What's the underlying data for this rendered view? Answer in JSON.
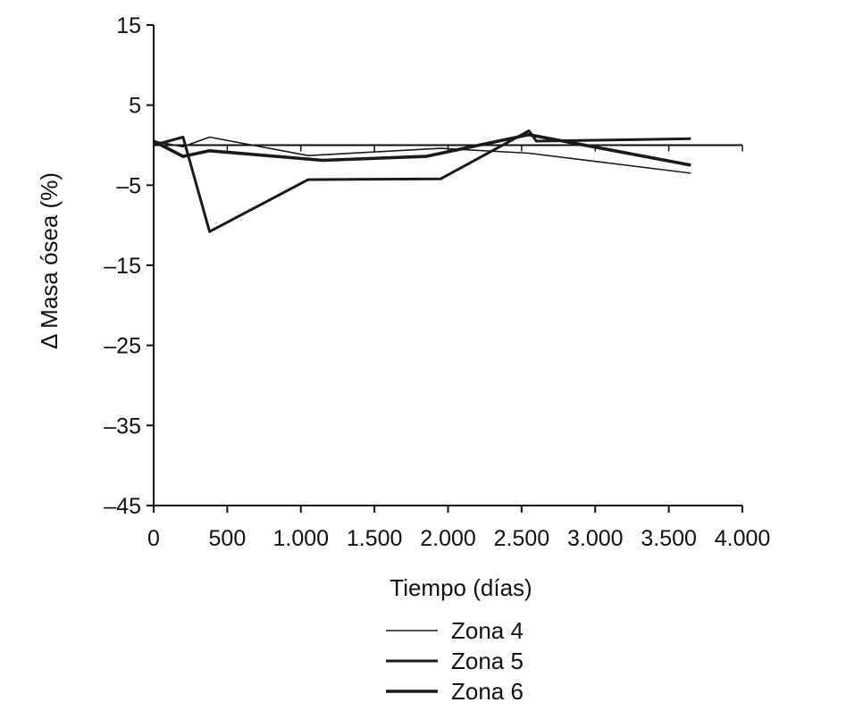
{
  "chart_data": {
    "type": "line",
    "title": "",
    "xlabel": "Tiempo (días)",
    "ylabel": "Δ Masa ósea (%)",
    "xlim": [
      0,
      4000
    ],
    "ylim": [
      -45,
      15
    ],
    "x_ticks": [
      0,
      500,
      1000,
      1500,
      2000,
      2500,
      3000,
      3500,
      4000
    ],
    "x_tick_labels": [
      "0",
      "500",
      "1.000",
      "1.500",
      "2.000",
      "2.500",
      "3.000",
      "3.500",
      "4.000"
    ],
    "y_ticks": [
      15,
      5,
      -5,
      -15,
      -25,
      -35,
      -45
    ],
    "y_tick_labels": [
      "15",
      "5",
      "–5",
      "–15",
      "–25",
      "–35",
      "–45"
    ],
    "grid": false,
    "legend_position": "bottom",
    "series": [
      {
        "name": "Zona 4",
        "color": "#1a1a1a",
        "line_style": "thin",
        "points": [
          [
            0,
            0.5
          ],
          [
            200,
            -0.2
          ],
          [
            380,
            1
          ],
          [
            1050,
            -1.3
          ],
          [
            1950,
            -0.4
          ],
          [
            2550,
            -1
          ],
          [
            3650,
            -3.5
          ]
        ]
      },
      {
        "name": "Zona 5",
        "color": "#1a1a1a",
        "line_style": "medium",
        "points": [
          [
            0,
            0
          ],
          [
            200,
            1
          ],
          [
            380,
            -10.8
          ],
          [
            1050,
            -4.3
          ],
          [
            1950,
            -4.2
          ],
          [
            2550,
            1.8
          ],
          [
            2600,
            0.5
          ],
          [
            3650,
            0.8
          ]
        ]
      },
      {
        "name": "Zona 6",
        "color": "#1a1a1a",
        "line_style": "thick",
        "points": [
          [
            0,
            0.5
          ],
          [
            200,
            -1.4
          ],
          [
            380,
            -0.7
          ],
          [
            1150,
            -1.9
          ],
          [
            1850,
            -1.4
          ],
          [
            2550,
            1.3
          ],
          [
            3650,
            -2.5
          ]
        ]
      }
    ]
  }
}
